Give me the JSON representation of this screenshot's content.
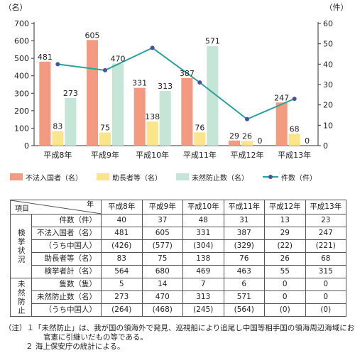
{
  "chart_data": {
    "type": "bar",
    "categories": [
      "平成8年",
      "平成9年",
      "平成10年",
      "平成11年",
      "平成12年",
      "平成13年"
    ],
    "series": [
      {
        "name": "不法入国者（名）",
        "kind": "bar",
        "axis": "left",
        "color": "#f39a80",
        "values": [
          481,
          605,
          331,
          387,
          29,
          247
        ]
      },
      {
        "name": "助長者等（名）",
        "kind": "bar",
        "axis": "left",
        "color": "#fbe58a",
        "values": [
          83,
          75,
          138,
          76,
          26,
          68
        ]
      },
      {
        "name": "未然防止数（名）",
        "kind": "bar",
        "axis": "left",
        "color": "#c5e6d6",
        "values": [
          273,
          470,
          313,
          571,
          0,
          0
        ]
      },
      {
        "name": "件数（件）",
        "kind": "line",
        "axis": "right",
        "color": "#2aa39a",
        "marker_color": "#4b4f9e",
        "values": [
          40,
          37,
          48,
          31,
          13,
          23
        ]
      }
    ],
    "left_axis": {
      "unit": "（名）",
      "ylim": [
        0,
        700
      ],
      "ticks": [
        "0",
        "100",
        "200",
        "300",
        "400",
        "500",
        "600",
        "700"
      ]
    },
    "right_axis": {
      "unit": "（件）",
      "ylim": [
        0,
        60
      ],
      "ticks": [
        "0",
        "10",
        "20",
        "30",
        "40",
        "50",
        "60"
      ]
    },
    "grid": false,
    "legend": "bottom"
  },
  "legend_labels": [
    "不法入国者（名）",
    "助長者等（名）",
    "未然防止数（名）",
    "件数（件）"
  ],
  "table": {
    "header_year": "年",
    "header_item": "項目",
    "years": [
      "平成8年",
      "平成9年",
      "平成10年",
      "平成11年",
      "平成12年",
      "平成13年"
    ],
    "count_row": {
      "label": "件数（件）",
      "values": [
        "40",
        "37",
        "48",
        "31",
        "13",
        "23"
      ]
    },
    "group1": {
      "label": "検挙状況",
      "rows": [
        {
          "label": "不法入国者（名）",
          "values": [
            "481",
            "605",
            "331",
            "387",
            "29",
            "247"
          ]
        },
        {
          "label": "（うち中国人）",
          "values": [
            "(426)",
            "(577)",
            "(304)",
            "(329)",
            "(22)",
            "(221)"
          ]
        },
        {
          "label": "助長者等（名）",
          "values": [
            "83",
            "75",
            "138",
            "76",
            "26",
            "68"
          ]
        },
        {
          "label": "検挙者計（名）",
          "values": [
            "564",
            "680",
            "469",
            "463",
            "55",
            "315"
          ]
        }
      ]
    },
    "group2": {
      "label": "未然防止",
      "rows": [
        {
          "label": "隻数（隻）",
          "values": [
            "5",
            "14",
            "7",
            "6",
            "0",
            "0"
          ]
        },
        {
          "label": "未然防止数（名）",
          "values": [
            "273",
            "470",
            "313",
            "571",
            "0",
            "0"
          ]
        },
        {
          "label": "（うち中国人）",
          "values": [
            "(264)",
            "(468)",
            "(245)",
            "(564)",
            "(0)",
            "(0)"
          ]
        }
      ]
    }
  },
  "notes": {
    "line1": "（注）１「未然防止」は、我が国の領海外で発見、巡視船により追尾し中国等相手国の領海周辺海域において",
    "line2": "官憲に引継いだもの等である。",
    "line3": "２ 海上保安庁の統計による。"
  }
}
